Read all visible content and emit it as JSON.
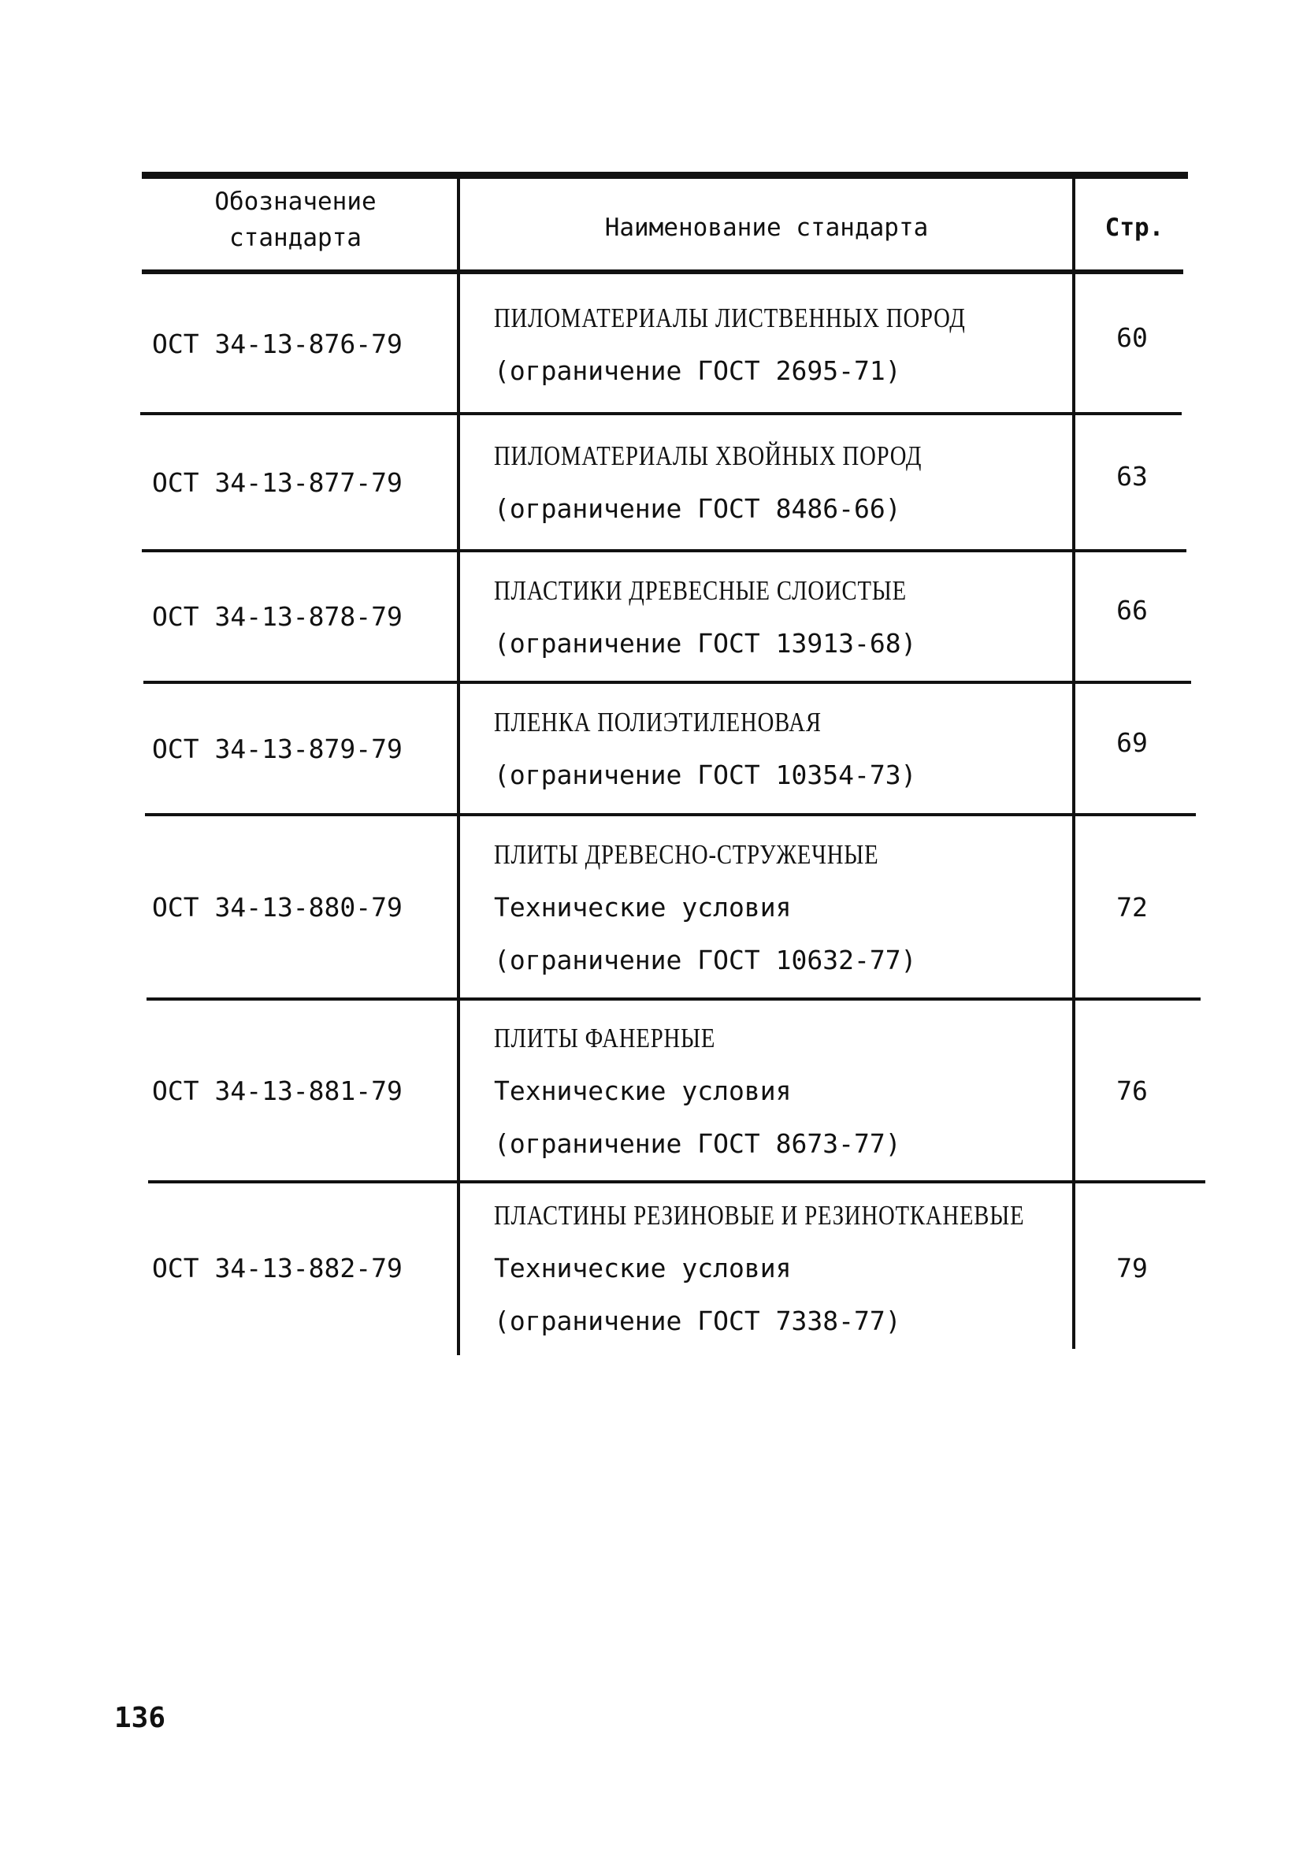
{
  "table": {
    "headers": {
      "code": "Обозначение стандарта",
      "name": "Наименование стандарта",
      "page": "Стр."
    },
    "rows": [
      {
        "code": "ОСТ 34-13-876-79",
        "title": "ПИЛОМАТЕРИАЛЫ ЛИСТВЕННЫХ ПОРОД",
        "subtitle": "",
        "restriction": "(ограничение ГОСТ 2695-71)",
        "page": "60"
      },
      {
        "code": "ОСТ 34-13-877-79",
        "title": "ПИЛОМАТЕРИАЛЫ ХВОЙНЫХ ПОРОД",
        "subtitle": "",
        "restriction": "(ограничение ГОСТ 8486-66)",
        "page": "63"
      },
      {
        "code": "ОСТ 34-13-878-79",
        "title": "ПЛАСТИКИ ДРЕВЕСНЫЕ СЛОИСТЫЕ",
        "subtitle": "",
        "restriction": "(ограничение ГОСТ 13913-68)",
        "page": "66"
      },
      {
        "code": "ОСТ 34-13-879-79",
        "title": "ПЛЕНКА ПОЛИЭТИЛЕНОВАЯ",
        "subtitle": "",
        "restriction": "(ограничение ГОСТ 10354-73)",
        "page": "69"
      },
      {
        "code": "ОСТ 34-13-880-79",
        "title": "ПЛИТЫ ДРЕВЕСНО-СТРУЖЕЧНЫЕ",
        "subtitle": "Технические условия",
        "restriction": "(ограничение ГОСТ 10632-77)",
        "page": "72"
      },
      {
        "code": "ОСТ 34-13-881-79",
        "title": "ПЛИТЫ ФАНЕРНЫЕ",
        "subtitle": "Технические условия",
        "restriction": "(ограничение ГОСТ 8673-77)",
        "page": "76"
      },
      {
        "code": "ОСТ 34-13-882-79",
        "title": "ПЛАСТИНЫ РЕЗИНОВЫЕ И РЕЗИНОТКАНЕВЫЕ",
        "subtitle": "Технические условия",
        "restriction": "(ограничение ГОСТ 7338-77)",
        "page": "79"
      }
    ]
  },
  "page_number": "136"
}
